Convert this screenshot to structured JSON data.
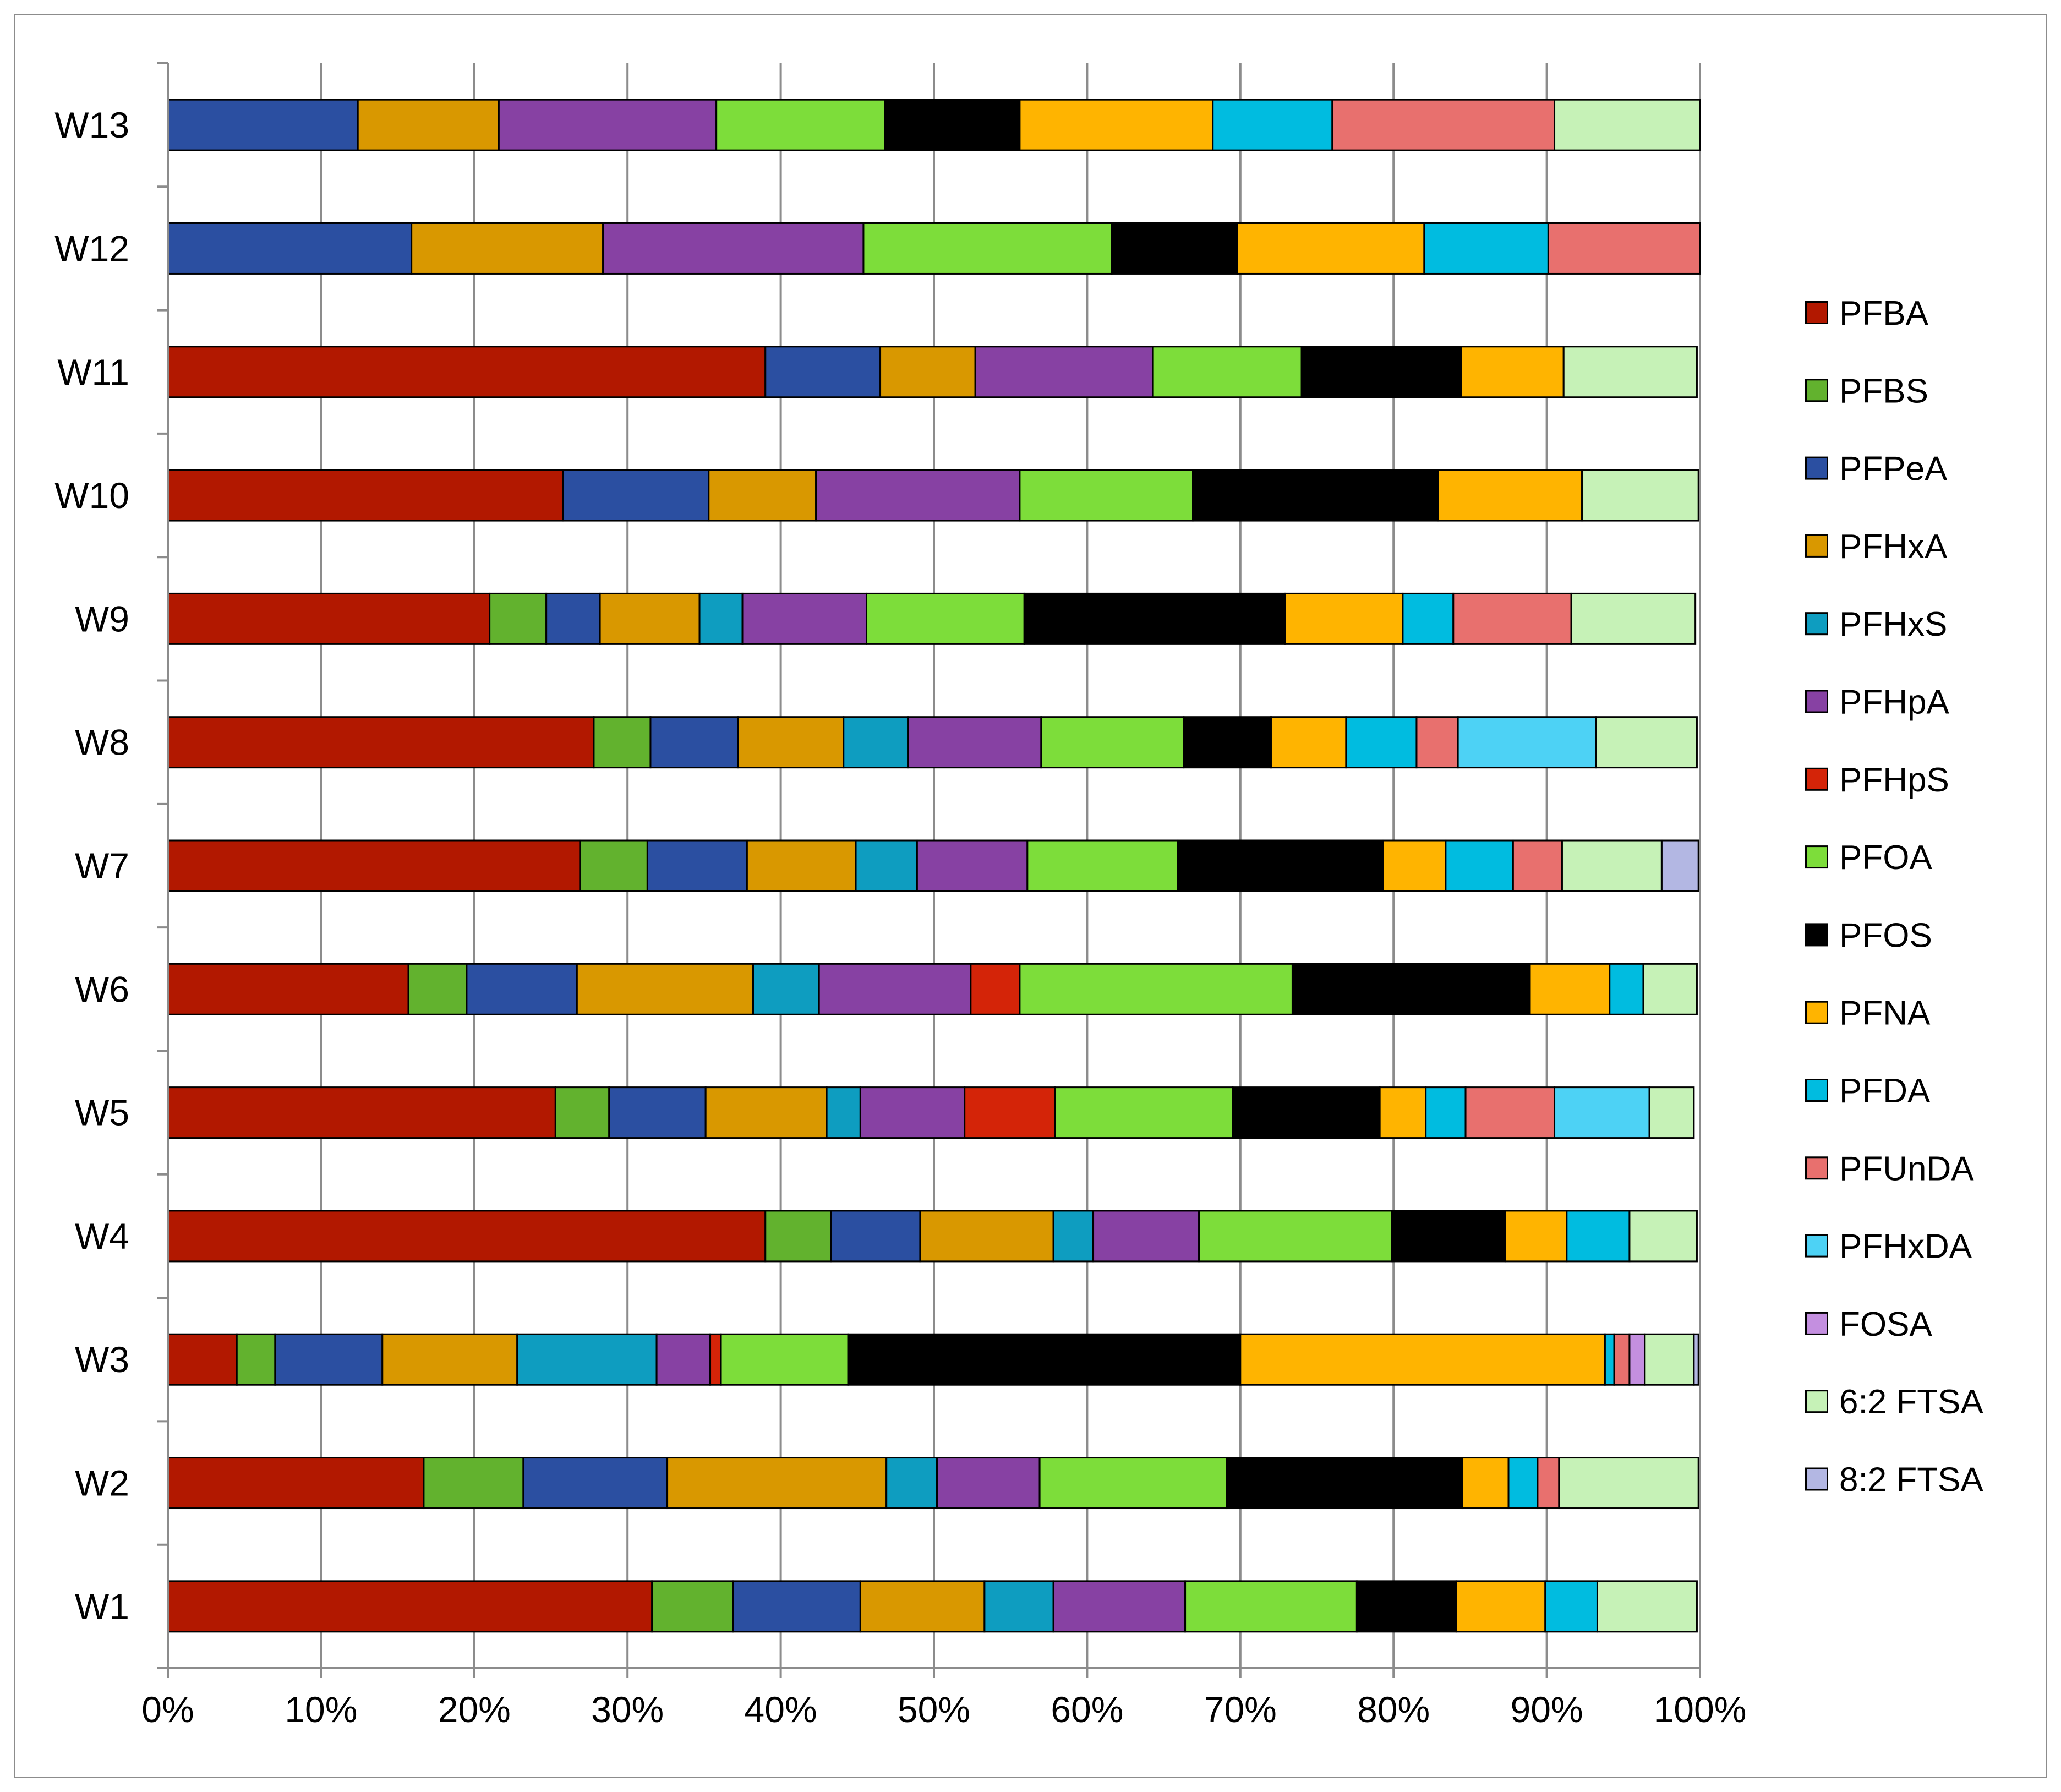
{
  "chart_data": {
    "type": "bar",
    "orientation": "horizontal",
    "stacked": true,
    "normalized": true,
    "title": "",
    "xlabel": "",
    "ylabel": "",
    "xlim": [
      0,
      100
    ],
    "x_tick_labels": [
      "0%",
      "10%",
      "20%",
      "30%",
      "40%",
      "50%",
      "60%",
      "70%",
      "80%",
      "90%",
      "100%"
    ],
    "grid": "vertical",
    "legend_position": "right",
    "categories": [
      "W1",
      "W2",
      "W3",
      "W4",
      "W5",
      "W6",
      "W7",
      "W8",
      "W9",
      "W10",
      "W11",
      "W12",
      "W13"
    ],
    "series": [
      {
        "name": "PFBA",
        "color": "#B21800",
        "values": [
          31.6,
          16.7,
          4.5,
          39.0,
          25.3,
          15.7,
          26.9,
          27.8,
          21.0,
          25.8,
          39.0,
          0,
          0
        ]
      },
      {
        "name": "PFBS",
        "color": "#62B22E",
        "values": [
          5.3,
          6.5,
          2.5,
          4.3,
          3.5,
          3.8,
          4.4,
          3.7,
          3.7,
          0,
          0,
          0,
          0
        ]
      },
      {
        "name": "PFPeA",
        "color": "#2B4FA1",
        "values": [
          8.3,
          9.4,
          7.0,
          5.8,
          6.3,
          7.2,
          6.5,
          5.7,
          3.5,
          9.5,
          7.5,
          15.9,
          12.4
        ]
      },
      {
        "name": "PFHxA",
        "color": "#D99800",
        "values": [
          8.1,
          14.3,
          8.8,
          8.7,
          7.9,
          11.5,
          7.1,
          6.9,
          6.5,
          7.0,
          6.2,
          12.5,
          9.2
        ]
      },
      {
        "name": "PFHxS",
        "color": "#0E9DC0",
        "values": [
          4.5,
          3.3,
          9.1,
          2.6,
          2.2,
          4.3,
          4.0,
          4.2,
          2.8,
          0,
          0,
          0,
          0
        ]
      },
      {
        "name": "PFHpA",
        "color": "#8741A3",
        "values": [
          8.6,
          6.7,
          3.5,
          6.9,
          6.8,
          9.9,
          7.2,
          8.7,
          8.1,
          13.3,
          11.6,
          17.0,
          14.2
        ]
      },
      {
        "name": "PFHpS",
        "color": "#D42408",
        "values": [
          0,
          0,
          0.7,
          0,
          5.9,
          3.2,
          0,
          0,
          0,
          0,
          0,
          0,
          0
        ]
      },
      {
        "name": "PFOA",
        "color": "#7DDD3A",
        "values": [
          11.2,
          12.2,
          8.3,
          12.6,
          11.6,
          17.8,
          9.8,
          9.3,
          10.3,
          11.3,
          9.7,
          16.2,
          11.0
        ]
      },
      {
        "name": "PFOS",
        "color": "#000000",
        "values": [
          6.5,
          15.4,
          25.6,
          7.4,
          9.6,
          15.5,
          13.4,
          5.7,
          17.0,
          16.0,
          10.4,
          8.2,
          8.8
        ]
      },
      {
        "name": "PFNA",
        "color": "#FFB400",
        "values": [
          5.8,
          3.0,
          23.8,
          4.0,
          3.0,
          5.2,
          4.1,
          4.9,
          7.7,
          9.4,
          6.7,
          12.2,
          12.6
        ]
      },
      {
        "name": "PFDA",
        "color": "#00BCE0",
        "values": [
          3.4,
          1.9,
          0.6,
          4.1,
          2.6,
          2.2,
          4.4,
          4.6,
          3.3,
          0,
          0,
          8.1,
          7.8
        ]
      },
      {
        "name": "PFUnDA",
        "color": "#E8706E",
        "values": [
          0,
          1.4,
          1.0,
          0,
          5.8,
          0,
          3.2,
          2.7,
          7.7,
          0,
          0,
          9.9,
          14.5
        ]
      },
      {
        "name": "PFHxDA",
        "color": "#4DD2F5",
        "values": [
          0,
          0,
          0,
          0,
          6.2,
          0,
          0,
          9.0,
          0,
          0,
          0,
          0,
          0
        ]
      },
      {
        "name": "FOSA",
        "color": "#C48FE0",
        "values": [
          0,
          0,
          1.0,
          0,
          0,
          0,
          0,
          0,
          0,
          0,
          0,
          0,
          0
        ]
      },
      {
        "name": "6:2 FTSA",
        "color": "#C6F2B7",
        "values": [
          6.5,
          9.1,
          3.2,
          4.4,
          2.9,
          3.5,
          6.5,
          6.6,
          8.1,
          7.6,
          8.7,
          0,
          9.5
        ]
      },
      {
        "name": "8:2 FTSA",
        "color": "#B3B7E3",
        "values": [
          0,
          0,
          0.3,
          0,
          0,
          0,
          2.4,
          0,
          0,
          0,
          0,
          0,
          0
        ]
      }
    ]
  }
}
